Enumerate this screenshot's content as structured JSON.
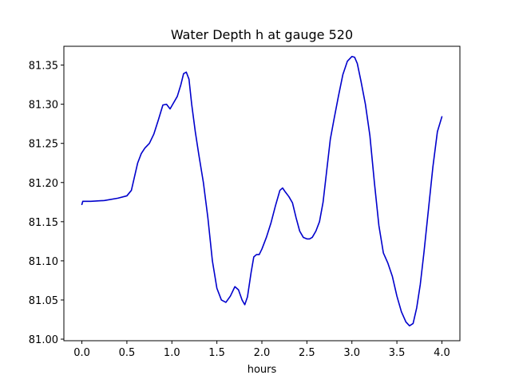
{
  "chart_data": {
    "type": "line",
    "title": "Water Depth h at gauge 520",
    "xlabel": "hours",
    "ylabel": "",
    "xlim": [
      -0.2,
      4.2
    ],
    "ylim": [
      80.998,
      81.374
    ],
    "xticks": [
      0.0,
      0.5,
      1.0,
      1.5,
      2.0,
      2.5,
      3.0,
      3.5,
      4.0
    ],
    "xtick_labels": [
      "0.0",
      "0.5",
      "1.0",
      "1.5",
      "2.0",
      "2.5",
      "3.0",
      "3.5",
      "4.0"
    ],
    "yticks": [
      81.0,
      81.05,
      81.1,
      81.15,
      81.2,
      81.25,
      81.3,
      81.35
    ],
    "ytick_labels": [
      "81.00",
      "81.05",
      "81.10",
      "81.15",
      "81.20",
      "81.25",
      "81.30",
      "81.35"
    ],
    "grid": false,
    "series": [
      {
        "color": "#0000cc",
        "x": [
          0.0,
          0.01,
          0.1,
          0.25,
          0.4,
          0.5,
          0.55,
          0.58,
          0.62,
          0.66,
          0.7,
          0.75,
          0.8,
          0.85,
          0.9,
          0.94,
          0.98,
          1.02,
          1.06,
          1.1,
          1.13,
          1.16,
          1.19,
          1.22,
          1.26,
          1.3,
          1.35,
          1.4,
          1.45,
          1.5,
          1.55,
          1.6,
          1.65,
          1.7,
          1.74,
          1.78,
          1.81,
          1.84,
          1.88,
          1.91,
          1.94,
          1.97,
          2.0,
          2.05,
          2.1,
          2.15,
          2.2,
          2.23,
          2.26,
          2.3,
          2.34,
          2.38,
          2.42,
          2.46,
          2.5,
          2.53,
          2.56,
          2.6,
          2.64,
          2.68,
          2.72,
          2.76,
          2.8,
          2.85,
          2.9,
          2.95,
          3.0,
          3.03,
          3.06,
          3.1,
          3.15,
          3.2,
          3.25,
          3.3,
          3.35,
          3.4,
          3.45,
          3.5,
          3.55,
          3.6,
          3.64,
          3.68,
          3.72,
          3.76,
          3.8,
          3.85,
          3.9,
          3.95,
          4.0
        ],
        "y": [
          81.172,
          81.176,
          81.176,
          81.177,
          81.18,
          81.183,
          81.19,
          81.205,
          81.225,
          81.237,
          81.244,
          81.25,
          81.262,
          81.28,
          81.299,
          81.3,
          81.294,
          81.302,
          81.31,
          81.325,
          81.339,
          81.341,
          81.332,
          81.3,
          81.265,
          81.235,
          81.2,
          81.155,
          81.1,
          81.065,
          81.05,
          81.047,
          81.055,
          81.067,
          81.063,
          81.05,
          81.044,
          81.054,
          81.085,
          81.105,
          81.108,
          81.108,
          81.115,
          81.13,
          81.148,
          81.17,
          81.19,
          81.193,
          81.188,
          81.182,
          81.174,
          81.155,
          81.138,
          81.13,
          81.128,
          81.128,
          81.13,
          81.138,
          81.15,
          81.175,
          81.215,
          81.255,
          81.28,
          81.31,
          81.338,
          81.355,
          81.361,
          81.36,
          81.352,
          81.33,
          81.3,
          81.26,
          81.2,
          81.145,
          81.11,
          81.097,
          81.08,
          81.055,
          81.035,
          81.022,
          81.017,
          81.02,
          81.04,
          81.07,
          81.11,
          81.165,
          81.22,
          81.265,
          81.284
        ]
      }
    ]
  }
}
